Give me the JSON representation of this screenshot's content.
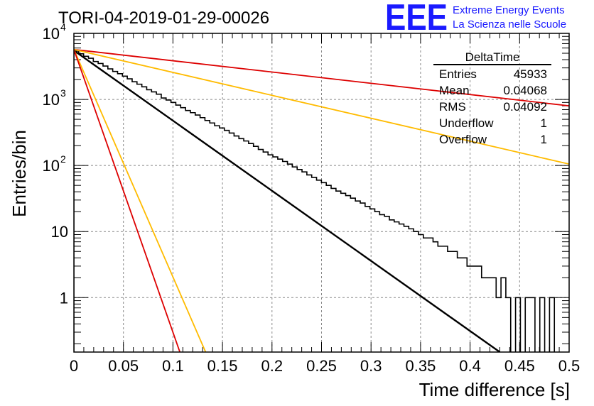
{
  "chart_data": {
    "type": "histogram",
    "title": "TORI-04-2019-01-29-00026",
    "xlabel": "Time difference [s]",
    "ylabel": "Entries/bin",
    "xlim": [
      0,
      0.5
    ],
    "ylim": [
      0.15,
      10000
    ],
    "yscale": "log",
    "grid": true,
    "x_ticks": [
      "0",
      "0.05",
      "0.1",
      "0.15",
      "0.2",
      "0.25",
      "0.3",
      "0.35",
      "0.4",
      "0.45",
      "0.5"
    ],
    "y_tick_labels": {
      "1": "1",
      "10": "10",
      "100": {
        "base": "10",
        "exp": "2"
      },
      "1000": {
        "base": "10",
        "exp": "3"
      },
      "10000": {
        "base": "10",
        "exp": "4"
      }
    },
    "bin_width": 0.0049,
    "histogram_counts": [
      5400,
      4900,
      4500,
      4200,
      3750,
      3500,
      3200,
      2900,
      2650,
      2450,
      2250,
      2050,
      1850,
      1700,
      1550,
      1400,
      1300,
      1200,
      1050,
      980,
      900,
      820,
      750,
      680,
      630,
      580,
      530,
      480,
      440,
      400,
      370,
      340,
      310,
      280,
      255,
      235,
      215,
      195,
      175,
      160,
      145,
      135,
      125,
      115,
      105,
      95,
      87,
      80,
      72,
      66,
      60,
      55,
      50,
      45,
      41,
      38,
      35,
      32,
      29,
      27,
      24,
      22,
      20,
      18,
      17,
      15,
      14,
      13,
      12,
      11,
      10,
      9,
      8,
      8,
      7,
      6,
      6,
      5,
      5,
      4,
      4,
      3,
      3,
      3,
      2,
      2,
      2,
      1,
      2,
      1,
      0,
      1,
      0,
      1,
      1,
      0,
      1,
      0,
      1
    ],
    "fit_lines": [
      {
        "color": "#000000",
        "points": [
          [
            0,
            5500
          ],
          [
            0.43,
            0.15
          ]
        ]
      },
      {
        "color": "#dd0000",
        "points": [
          [
            0,
            5700
          ],
          [
            0.5,
            800
          ]
        ]
      },
      {
        "color": "#ffbb00",
        "points": [
          [
            0,
            5700
          ],
          [
            0.5,
            105
          ]
        ]
      },
      {
        "color": "#ffbb00",
        "points": [
          [
            0,
            5700
          ],
          [
            0.133,
            0.15
          ]
        ]
      },
      {
        "color": "#dd0000",
        "points": [
          [
            0,
            5700
          ],
          [
            0.107,
            0.15
          ]
        ]
      }
    ],
    "stats": {
      "name": "DeltaTime",
      "rows": [
        {
          "label": "Entries",
          "value": "45933"
        },
        {
          "label": "Mean",
          "value": "0.04068"
        },
        {
          "label": "RMS",
          "value": "0.04092"
        },
        {
          "label": "Underflow",
          "value": "1"
        },
        {
          "label": "Overflow",
          "value": "1"
        }
      ]
    }
  },
  "logo": {
    "mark": "EEE",
    "line1": "Extreme Energy Events",
    "line2": "La Scienza nelle Scuole",
    "color": "#1a1aff"
  }
}
